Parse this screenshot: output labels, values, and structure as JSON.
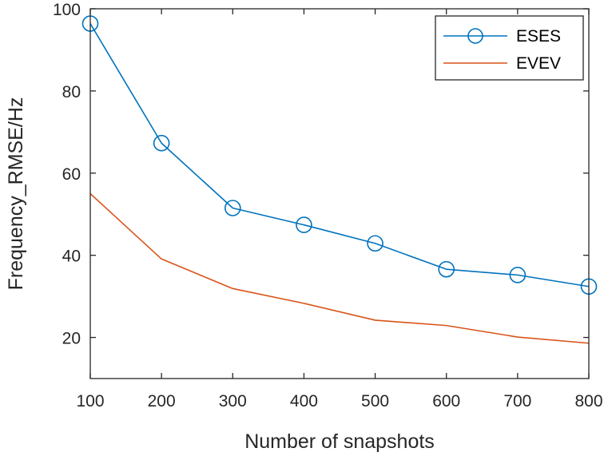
{
  "chart_data": {
    "type": "line",
    "title": "",
    "xlabel": "Number of snapshots",
    "ylabel": "Frequency_RMSE/Hz",
    "xlim": [
      100,
      800
    ],
    "ylim": [
      10,
      100
    ],
    "xticks": [
      100,
      200,
      300,
      400,
      500,
      600,
      700,
      800
    ],
    "xtick_labels": [
      "100",
      "200",
      "300",
      "400",
      "500",
      "600",
      "700",
      "800"
    ],
    "yticks": [
      20,
      40,
      60,
      80,
      100
    ],
    "ytick_labels": [
      "20",
      "40",
      "60",
      "80",
      "100"
    ],
    "grid": false,
    "legend_position": "top-right",
    "series": [
      {
        "name": "ESES",
        "color": "#0072BD",
        "marker": "circle",
        "x": [
          100,
          200,
          300,
          400,
          500,
          600,
          700,
          800
        ],
        "values": [
          96.4,
          67.3,
          51.5,
          47.4,
          42.9,
          36.6,
          35.2,
          32.4
        ]
      },
      {
        "name": "EVEV",
        "color": "#D95319",
        "marker": "none",
        "x": [
          100,
          200,
          300,
          400,
          500,
          600,
          700,
          800
        ],
        "values": [
          55.0,
          39.1,
          31.9,
          28.3,
          24.2,
          22.9,
          20.1,
          18.6
        ]
      }
    ]
  }
}
